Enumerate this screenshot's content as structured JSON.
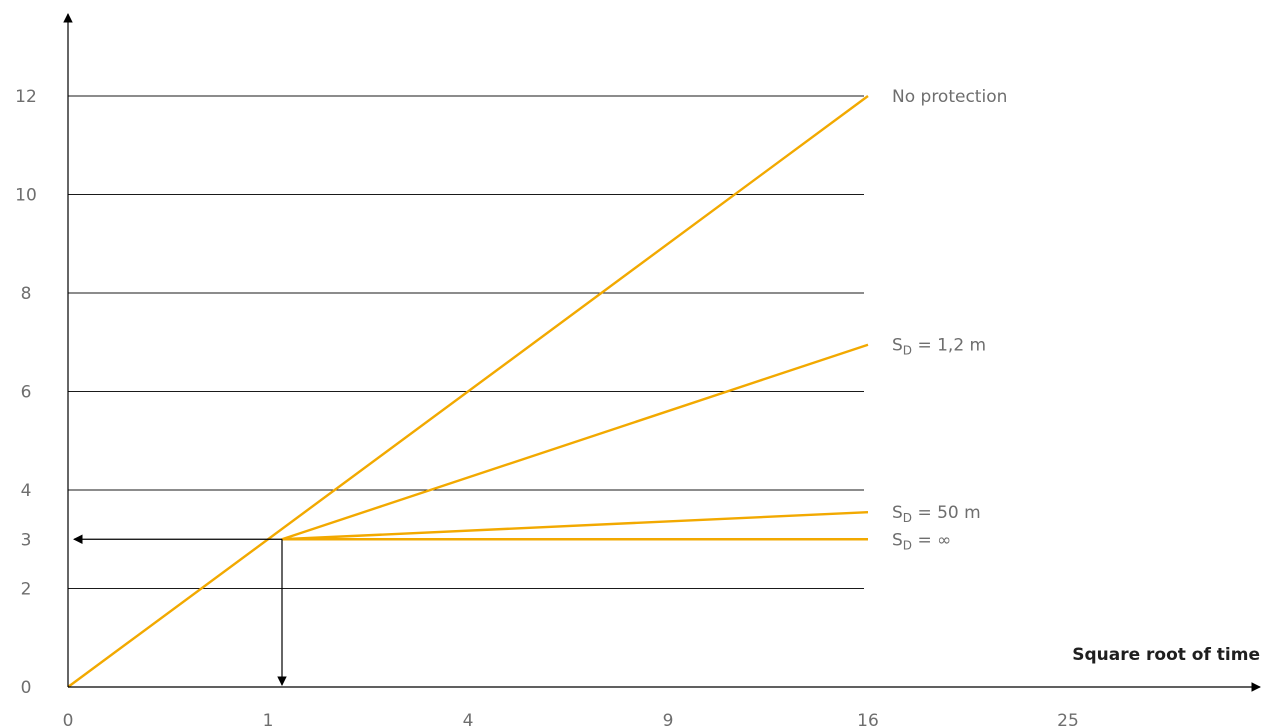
{
  "chart_data": {
    "type": "line",
    "xlabel": "Square root of time",
    "ylabel": "",
    "xlim": [
      0,
      5.9
    ],
    "ylim": [
      0,
      13
    ],
    "x_ticks": [
      {
        "pos": 0,
        "label": "0"
      },
      {
        "pos": 1,
        "label": "1"
      },
      {
        "pos": 2,
        "label": "4"
      },
      {
        "pos": 3,
        "label": "9"
      },
      {
        "pos": 4,
        "label": "16"
      },
      {
        "pos": 5,
        "label": "25"
      }
    ],
    "y_ticks": [
      {
        "value": 0,
        "label": "0"
      },
      {
        "value": 2,
        "label": "2"
      },
      {
        "value": 3,
        "label": "3"
      },
      {
        "value": 4,
        "label": "4"
      },
      {
        "value": 6,
        "label": "6"
      },
      {
        "value": 8,
        "label": "8"
      },
      {
        "value": 10,
        "label": "10"
      },
      {
        "value": 12,
        "label": "12"
      }
    ],
    "gridlines_y": [
      2,
      4,
      6,
      8,
      10,
      12
    ],
    "grid_x_end": 4,
    "series_color": "#f2a900",
    "series": [
      {
        "name": "No protection",
        "points": [
          [
            0,
            0
          ],
          [
            4,
            12
          ]
        ]
      },
      {
        "name": "S_D = 1,2 m",
        "label_main": "S",
        "label_sub": "D",
        "label_rest": " = 1,2 m",
        "points": [
          [
            1.07,
            3
          ],
          [
            4,
            6.95
          ]
        ]
      },
      {
        "name": "S_D = 50 m",
        "label_main": "S",
        "label_sub": "D",
        "label_rest": " = 50 m",
        "points": [
          [
            1.07,
            3
          ],
          [
            4,
            3.55
          ]
        ]
      },
      {
        "name": "S_D = ∞",
        "label_main": "S",
        "label_sub": "D",
        "label_rest": " = ∞",
        "points": [
          [
            1.07,
            3
          ],
          [
            4,
            3
          ]
        ]
      }
    ],
    "reading_guides": {
      "x": 1.07,
      "y": 3
    }
  }
}
